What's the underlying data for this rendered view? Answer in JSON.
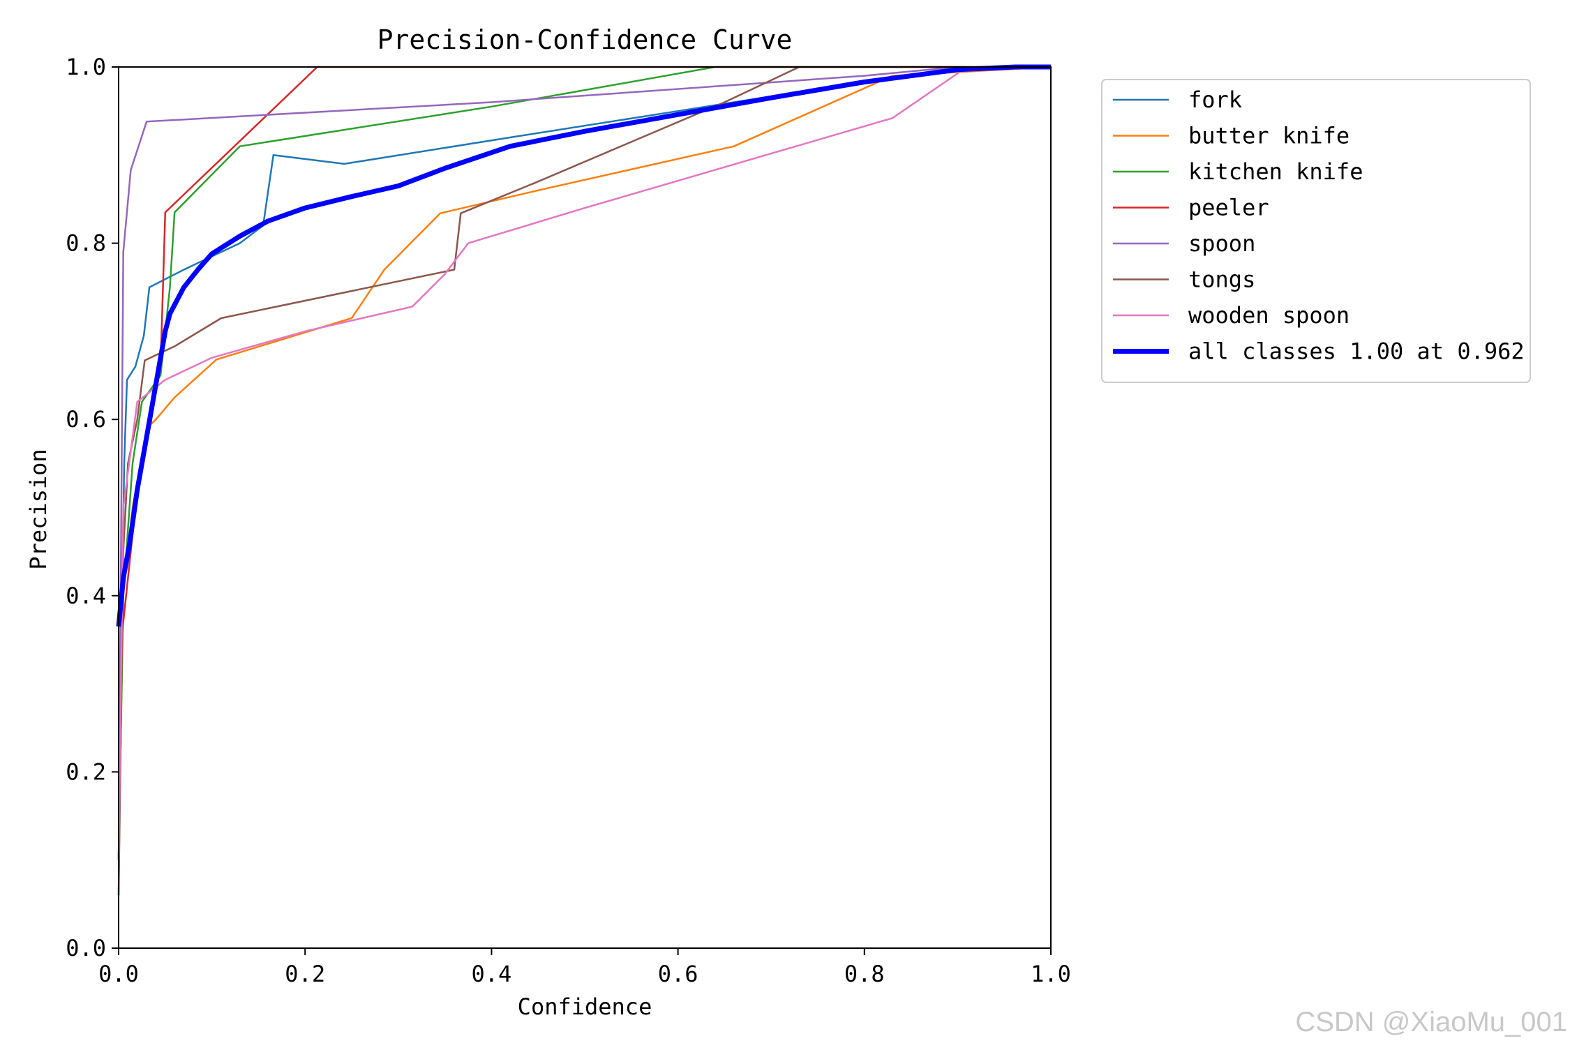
{
  "chart_data": {
    "type": "line",
    "title": "Precision-Confidence Curve",
    "xlabel": "Confidence",
    "ylabel": "Precision",
    "xlim": [
      0,
      1
    ],
    "ylim": [
      0,
      1
    ],
    "xticks": [
      "0.0",
      "0.2",
      "0.4",
      "0.6",
      "0.8",
      "1.0"
    ],
    "yticks": [
      "0.0",
      "0.2",
      "0.4",
      "0.6",
      "0.8",
      "1.0"
    ],
    "grid": false,
    "legend_position": "outside-top-right",
    "series": [
      {
        "name": "fork",
        "color": "#1f77b4",
        "width": 2.5,
        "points": [
          [
            0.0,
            0.1
          ],
          [
            0.003,
            0.35
          ],
          [
            0.006,
            0.55
          ],
          [
            0.009,
            0.645
          ],
          [
            0.018,
            0.66
          ],
          [
            0.027,
            0.695
          ],
          [
            0.033,
            0.75
          ],
          [
            0.07,
            0.77
          ],
          [
            0.1,
            0.785
          ],
          [
            0.13,
            0.8
          ],
          [
            0.155,
            0.82
          ],
          [
            0.166,
            0.9
          ],
          [
            0.242,
            0.89
          ],
          [
            0.42,
            0.92
          ],
          [
            0.6,
            0.95
          ],
          [
            0.75,
            0.975
          ],
          [
            0.85,
            0.99
          ],
          [
            0.9,
            1.0
          ],
          [
            1.0,
            1.0
          ]
        ]
      },
      {
        "name": "butter knife",
        "color": "#ff7f0e",
        "width": 2.5,
        "points": [
          [
            0.0,
            0.1
          ],
          [
            0.005,
            0.4
          ],
          [
            0.015,
            0.5
          ],
          [
            0.03,
            0.59
          ],
          [
            0.04,
            0.6
          ],
          [
            0.06,
            0.625
          ],
          [
            0.105,
            0.668
          ],
          [
            0.25,
            0.715
          ],
          [
            0.285,
            0.77
          ],
          [
            0.345,
            0.834
          ],
          [
            0.45,
            0.86
          ],
          [
            0.66,
            0.91
          ],
          [
            0.83,
            0.99
          ],
          [
            1.0,
            1.0
          ]
        ]
      },
      {
        "name": "kitchen knife",
        "color": "#2ca02c",
        "width": 2.5,
        "points": [
          [
            0.0,
            0.1
          ],
          [
            0.005,
            0.4
          ],
          [
            0.015,
            0.55
          ],
          [
            0.025,
            0.62
          ],
          [
            0.045,
            0.65
          ],
          [
            0.055,
            0.75
          ],
          [
            0.06,
            0.835
          ],
          [
            0.13,
            0.91
          ],
          [
            0.4,
            0.955
          ],
          [
            0.64,
            1.0
          ],
          [
            1.0,
            1.0
          ]
        ]
      },
      {
        "name": "peeler",
        "color": "#d62728",
        "width": 2.5,
        "points": [
          [
            0.0,
            0.06
          ],
          [
            0.003,
            0.35
          ],
          [
            0.01,
            0.42
          ],
          [
            0.02,
            0.52
          ],
          [
            0.035,
            0.6
          ],
          [
            0.045,
            0.66
          ],
          [
            0.05,
            0.835
          ],
          [
            0.213,
            1.0
          ],
          [
            1.0,
            1.0
          ]
        ]
      },
      {
        "name": "spoon",
        "color": "#9467bd",
        "width": 2.5,
        "points": [
          [
            0.0,
            0.1
          ],
          [
            0.005,
            0.79
          ],
          [
            0.013,
            0.883
          ],
          [
            0.03,
            0.938
          ],
          [
            0.4,
            0.96
          ],
          [
            0.8,
            0.99
          ],
          [
            0.9,
            1.0
          ],
          [
            1.0,
            1.0
          ]
        ]
      },
      {
        "name": "tongs",
        "color": "#8c564b",
        "width": 2.5,
        "points": [
          [
            0.0,
            0.06
          ],
          [
            0.005,
            0.45
          ],
          [
            0.01,
            0.55
          ],
          [
            0.02,
            0.6
          ],
          [
            0.028,
            0.667
          ],
          [
            0.06,
            0.683
          ],
          [
            0.11,
            0.715
          ],
          [
            0.36,
            0.77
          ],
          [
            0.367,
            0.834
          ],
          [
            0.45,
            0.87
          ],
          [
            0.65,
            0.96
          ],
          [
            0.73,
            1.0
          ],
          [
            1.0,
            1.0
          ]
        ]
      },
      {
        "name": "wooden spoon",
        "color": "#e377c2",
        "width": 2.5,
        "points": [
          [
            0.0,
            0.1
          ],
          [
            0.005,
            0.5
          ],
          [
            0.02,
            0.62
          ],
          [
            0.05,
            0.645
          ],
          [
            0.1,
            0.67
          ],
          [
            0.2,
            0.7
          ],
          [
            0.315,
            0.728
          ],
          [
            0.35,
            0.765
          ],
          [
            0.375,
            0.8
          ],
          [
            0.5,
            0.84
          ],
          [
            0.83,
            0.942
          ],
          [
            0.91,
            1.0
          ],
          [
            1.0,
            1.0
          ]
        ]
      },
      {
        "name": "all classes 1.00 at 0.962",
        "color": "#0000ff",
        "width": 7,
        "points": [
          [
            0.0,
            0.365
          ],
          [
            0.005,
            0.42
          ],
          [
            0.012,
            0.46
          ],
          [
            0.02,
            0.52
          ],
          [
            0.03,
            0.58
          ],
          [
            0.04,
            0.64
          ],
          [
            0.05,
            0.7
          ],
          [
            0.055,
            0.72
          ],
          [
            0.07,
            0.75
          ],
          [
            0.085,
            0.77
          ],
          [
            0.1,
            0.788
          ],
          [
            0.13,
            0.808
          ],
          [
            0.16,
            0.825
          ],
          [
            0.2,
            0.84
          ],
          [
            0.25,
            0.853
          ],
          [
            0.3,
            0.865
          ],
          [
            0.35,
            0.885
          ],
          [
            0.42,
            0.91
          ],
          [
            0.5,
            0.927
          ],
          [
            0.6,
            0.946
          ],
          [
            0.7,
            0.965
          ],
          [
            0.8,
            0.983
          ],
          [
            0.9,
            0.997
          ],
          [
            0.962,
            1.0
          ],
          [
            1.0,
            1.0
          ]
        ]
      }
    ]
  },
  "watermark": "CSDN @XiaoMu_001"
}
